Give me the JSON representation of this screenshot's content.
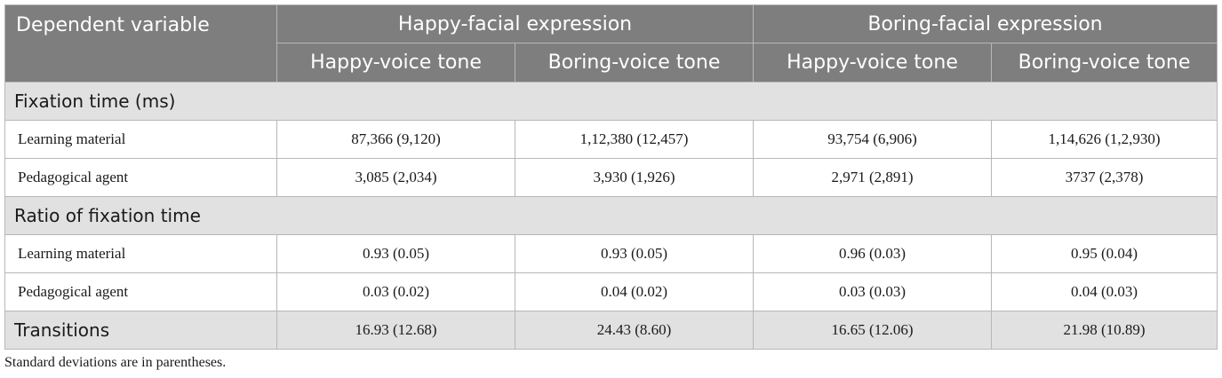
{
  "table": {
    "header": {
      "dependent_variable": "Dependent variable",
      "group_happy_face": "Happy-facial expression",
      "group_boring_face": "Boring-facial expression",
      "sub": [
        "Happy-voice tone",
        "Boring-voice tone",
        "Happy-voice tone",
        "Boring-voice tone"
      ]
    },
    "sections": [
      {
        "title": "Fixation time (ms)",
        "rows": [
          {
            "label": "Learning material",
            "values": [
              "87,366 (9,120)",
              "1,12,380 (12,457)",
              "93,754 (6,906)",
              "1,14,626 (1,2,930)"
            ]
          },
          {
            "label": "Pedagogical agent",
            "values": [
              "3,085 (2,034)",
              "3,930 (1,926)",
              "2,971 (2,891)",
              "3737 (2,378)"
            ]
          }
        ]
      },
      {
        "title": "Ratio of fixation time",
        "rows": [
          {
            "label": "Learning material",
            "values": [
              "0.93 (0.05)",
              "0.93 (0.05)",
              "0.96 (0.03)",
              "0.95 (0.04)"
            ]
          },
          {
            "label": "Pedagogical agent",
            "values": [
              "0.03 (0.02)",
              "0.04 (0.02)",
              "0.03 (0.03)",
              "0.04 (0.03)"
            ]
          }
        ]
      }
    ],
    "transitions": {
      "label": "Transitions",
      "values": [
        "16.93 (12.68)",
        "24.43 (8.60)",
        "16.65 (12.06)",
        "21.98 (10.89)"
      ]
    },
    "note": "Standard deviations are in parentheses."
  }
}
